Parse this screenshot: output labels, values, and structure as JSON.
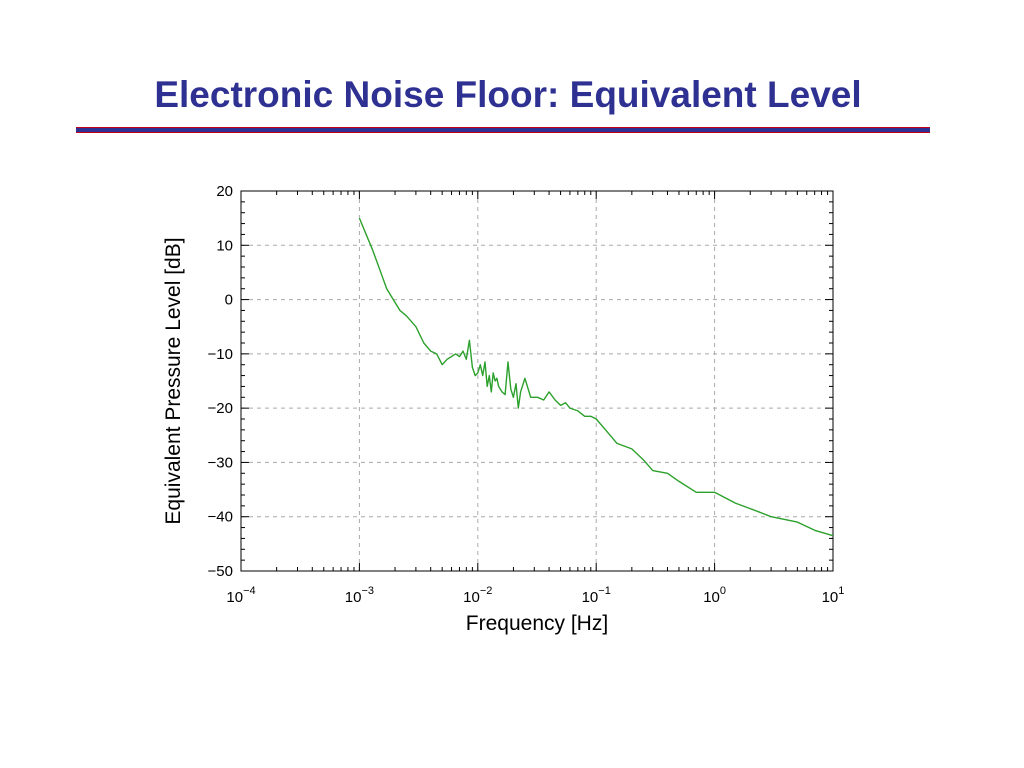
{
  "slide": {
    "title": "Electronic Noise Floor: Equivalent Level",
    "title_color": "#2e3192",
    "rule_color": "#2e3192"
  },
  "chart_data": {
    "type": "line",
    "xlabel": "Frequency [Hz]",
    "ylabel": "Equivalent Pressure Level [dB]",
    "xscale": "log",
    "xlim": [
      0.0001,
      10
    ],
    "ylim": [
      -50,
      20
    ],
    "grid": true,
    "x_ticks": [
      {
        "value": 0.0001,
        "base": "10",
        "exp": "−4"
      },
      {
        "value": 0.001,
        "base": "10",
        "exp": "−3"
      },
      {
        "value": 0.01,
        "base": "10",
        "exp": "−2"
      },
      {
        "value": 0.1,
        "base": "10",
        "exp": "−1"
      },
      {
        "value": 1,
        "base": "10",
        "exp": "0"
      },
      {
        "value": 10,
        "base": "10",
        "exp": "1"
      }
    ],
    "y_ticks": [
      {
        "value": 20,
        "label": "20"
      },
      {
        "value": 10,
        "label": "10"
      },
      {
        "value": 0,
        "label": "0"
      },
      {
        "value": -10,
        "label": "−10"
      },
      {
        "value": -20,
        "label": "−20"
      },
      {
        "value": -30,
        "label": "−30"
      },
      {
        "value": -40,
        "label": "−40"
      },
      {
        "value": -50,
        "label": "−50"
      }
    ],
    "series": [
      {
        "color": "#2ca02c",
        "x": [
          0.001,
          0.0013,
          0.0017,
          0.0022,
          0.0025,
          0.003,
          0.0035,
          0.004,
          0.0045,
          0.005,
          0.0055,
          0.006,
          0.0065,
          0.007,
          0.0075,
          0.008,
          0.0085,
          0.009,
          0.0095,
          0.01,
          0.0105,
          0.011,
          0.0115,
          0.012,
          0.0125,
          0.013,
          0.0135,
          0.014,
          0.0145,
          0.015,
          0.016,
          0.017,
          0.018,
          0.019,
          0.02,
          0.021,
          0.022,
          0.023,
          0.025,
          0.028,
          0.032,
          0.036,
          0.04,
          0.045,
          0.05,
          0.055,
          0.06,
          0.07,
          0.08,
          0.09,
          0.1,
          0.12,
          0.15,
          0.2,
          0.25,
          0.3,
          0.4,
          0.5,
          0.7,
          1.0,
          1.5,
          2,
          3,
          5,
          7,
          10
        ],
        "y": [
          15,
          9,
          2,
          -2,
          -3,
          -5,
          -8,
          -9.5,
          -10,
          -12,
          -11,
          -10.5,
          -10,
          -10.5,
          -9.5,
          -11,
          -7.5,
          -12.5,
          -14,
          -13.5,
          -12,
          -14,
          -11.5,
          -16,
          -14,
          -17,
          -13.5,
          -15,
          -14.5,
          -16,
          -17,
          -17.5,
          -11.5,
          -16.5,
          -18,
          -15.5,
          -20,
          -17,
          -14.5,
          -18,
          -18,
          -18.5,
          -17,
          -18.5,
          -19.5,
          -19,
          -20,
          -20.5,
          -21.5,
          -21.5,
          -22,
          -24,
          -26.5,
          -27.5,
          -29.5,
          -31.5,
          -32,
          -33.5,
          -35.5,
          -35.5,
          -37.5,
          -38.5,
          -40,
          -41,
          -42.5,
          -43.5
        ]
      }
    ]
  }
}
